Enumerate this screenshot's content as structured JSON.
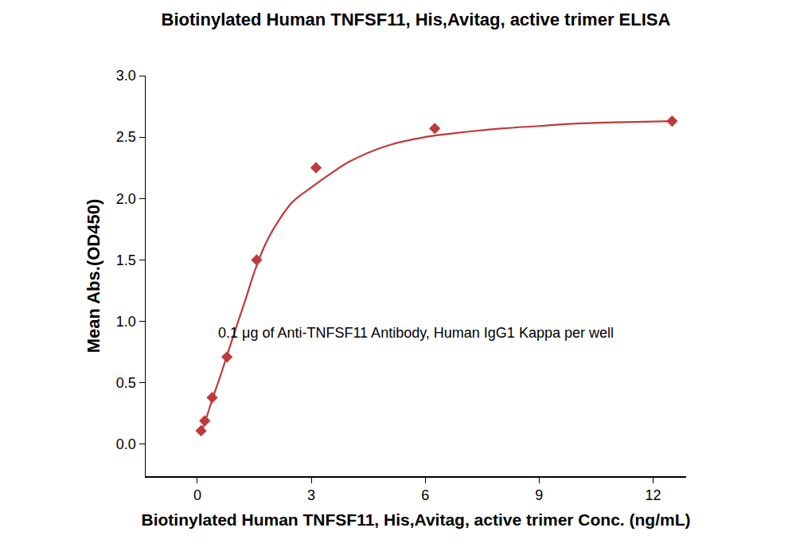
{
  "chart_data": {
    "type": "scatter",
    "title": "Biotinylated Human TNFSF11, His,Avitag, active trimer ELISA",
    "subtitle": "0.1 μg of Anti-TNFSF11 Antibody, Human IgG1 Kappa per well",
    "x_label": "Biotinylated Human TNFSF11, His,Avitag, active trimer Conc. (ng/mL)",
    "y_label": "Mean Abs.(OD450)",
    "xlim": [
      -1.36,
      12.87
    ],
    "ylim": [
      -0.26,
      3.0
    ],
    "xticks": [
      0,
      3,
      6,
      9,
      12
    ],
    "yticks": [
      {
        "value": 0,
        "label": "0.0"
      },
      0.5,
      {
        "value": 1,
        "label": "1.0"
      },
      1.5,
      {
        "value": 2,
        "label": "2.0"
      },
      2.5,
      {
        "value": 3,
        "label": "3.0"
      }
    ],
    "grid": false,
    "series": [
      {
        "type": "scatter",
        "marker": "diamond",
        "color": "#c0393b",
        "x": [
          0.098,
          0.195,
          0.391,
          0.781,
          1.5625,
          3.125,
          6.25,
          12.5
        ],
        "values": [
          0.11,
          0.19,
          0.38,
          0.71,
          1.5,
          2.25,
          2.57,
          2.63
        ]
      },
      {
        "type": "line",
        "line_style": "solid",
        "color": "#c0393b",
        "x": [
          0.098,
          0.2,
          0.4,
          0.6,
          0.8,
          1.0,
          1.25,
          1.5,
          1.75,
          2.0,
          2.5,
          3.0,
          3.5,
          4.0,
          5.0,
          6.0,
          7.0,
          8.0,
          9.0,
          10.0,
          11.0,
          12.5
        ],
        "values": [
          0.1,
          0.18,
          0.37,
          0.55,
          0.74,
          0.93,
          1.16,
          1.4,
          1.6,
          1.75,
          1.97,
          2.09,
          2.2,
          2.3,
          2.43,
          2.5,
          2.54,
          2.57,
          2.59,
          2.61,
          2.62,
          2.63
        ]
      }
    ]
  }
}
